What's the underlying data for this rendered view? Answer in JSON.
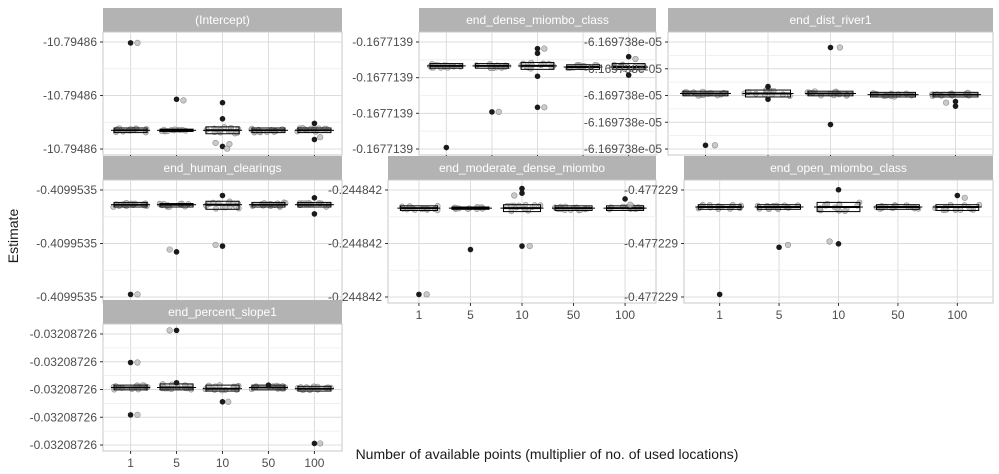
{
  "chart_data": {
    "type": "scatter",
    "subtype": "faceted-boxplot-with-jitter",
    "xlabel": "Number of available points (multiplier of no. of used locations)",
    "ylabel": "Estimate",
    "categories": [
      "1",
      "5",
      "10",
      "50",
      "100"
    ],
    "grid": true,
    "colors": {
      "strip": "#b3b3b3",
      "strip_text": "#ffffff",
      "grid": "#dcdcdc",
      "point_dark": "#1a1a1a",
      "point_light": "#bdbdbd",
      "box": "#000000",
      "text": "#4d4d4d"
    },
    "panels": [
      {
        "title": "(Intercept)",
        "yticks": [
          "-10.79486",
          "-10.79486",
          "-10.79486"
        ],
        "box": [
          {
            "cat": "1",
            "q1": 0.8,
            "med": 0.82,
            "q3": 0.84
          },
          {
            "cat": "5",
            "q1": 0.81,
            "med": 0.82,
            "q3": 0.83
          },
          {
            "cat": "10",
            "q1": 0.79,
            "med": 0.82,
            "q3": 0.85
          },
          {
            "cat": "50",
            "q1": 0.8,
            "med": 0.82,
            "q3": 0.84
          },
          {
            "cat": "100",
            "q1": 0.8,
            "med": 0.82,
            "q3": 0.84
          }
        ],
        "outliers": [
          {
            "cat": "1",
            "y": 0.06,
            "dark": true
          },
          {
            "cat": "1",
            "y": 0.06,
            "dark": false,
            "dx": 0.3
          },
          {
            "cat": "5",
            "y": 0.55,
            "dark": true
          },
          {
            "cat": "5",
            "y": 0.56,
            "dark": false,
            "dx": 0.3
          },
          {
            "cat": "10",
            "y": 0.58,
            "dark": true
          },
          {
            "cat": "10",
            "y": 0.72,
            "dark": true
          },
          {
            "cat": "10",
            "y": 0.96,
            "dark": true
          },
          {
            "cat": "10",
            "y": 0.94,
            "dark": false,
            "dx": 0.3
          },
          {
            "cat": "10",
            "y": 0.98,
            "dark": false,
            "dx": 0.2
          },
          {
            "cat": "10",
            "y": 0.93,
            "dark": false,
            "dx": -0.3
          },
          {
            "cat": "100",
            "y": 0.76,
            "dark": true
          },
          {
            "cat": "100",
            "y": 0.9,
            "dark": true
          },
          {
            "cat": "100",
            "y": 0.88,
            "dark": false,
            "dx": 0.25
          }
        ]
      },
      {
        "title": "end_dense_miombo_class",
        "yticks": [
          "-0.1677139",
          "-0.1677139",
          "-0.1677139",
          "-0.1677139"
        ],
        "box": [
          {
            "cat": "1",
            "q1": 0.24,
            "med": 0.26,
            "q3": 0.28
          },
          {
            "cat": "5",
            "q1": 0.24,
            "med": 0.26,
            "q3": 0.28
          },
          {
            "cat": "10",
            "q1": 0.23,
            "med": 0.26,
            "q3": 0.29
          },
          {
            "cat": "50",
            "q1": 0.25,
            "med": 0.27,
            "q3": 0.29
          },
          {
            "cat": "100",
            "q1": 0.24,
            "med": 0.27,
            "q3": 0.29
          }
        ],
        "outliers": [
          {
            "cat": "1",
            "y": 0.97,
            "dark": true
          },
          {
            "cat": "5",
            "y": 0.66,
            "dark": true
          },
          {
            "cat": "5",
            "y": 0.66,
            "dark": false,
            "dx": 0.3
          },
          {
            "cat": "10",
            "y": 0.11,
            "dark": true
          },
          {
            "cat": "10",
            "y": 0.15,
            "dark": true
          },
          {
            "cat": "10",
            "y": 0.35,
            "dark": true
          },
          {
            "cat": "10",
            "y": 0.62,
            "dark": true
          },
          {
            "cat": "10",
            "y": 0.11,
            "dark": false,
            "dx": 0.3
          },
          {
            "cat": "10",
            "y": 0.62,
            "dark": false,
            "dx": 0.3
          },
          {
            "cat": "100",
            "y": 0.18,
            "dark": true
          },
          {
            "cat": "100",
            "y": 0.2,
            "dark": false,
            "dx": 0.3
          },
          {
            "cat": "100",
            "y": 0.34,
            "dark": true
          }
        ]
      },
      {
        "title": "end_dist_river1",
        "yticks": [
          "-6.169738e-05",
          "-6.169738e-05",
          "-6.169738e-05",
          "-6.169738e-05",
          "-6.169738e-05"
        ],
        "box": [
          {
            "cat": "1",
            "q1": 0.48,
            "med": 0.5,
            "q3": 0.52
          },
          {
            "cat": "5",
            "q1": 0.47,
            "med": 0.5,
            "q3": 0.53
          },
          {
            "cat": "10",
            "q1": 0.48,
            "med": 0.5,
            "q3": 0.52
          },
          {
            "cat": "50",
            "q1": 0.49,
            "med": 0.51,
            "q3": 0.53
          },
          {
            "cat": "100",
            "q1": 0.49,
            "med": 0.51,
            "q3": 0.53
          }
        ],
        "outliers": [
          {
            "cat": "1",
            "y": 0.95,
            "dark": true
          },
          {
            "cat": "1",
            "y": 0.95,
            "dark": false,
            "dx": 0.3
          },
          {
            "cat": "5",
            "y": 0.44,
            "dark": true
          },
          {
            "cat": "5",
            "y": 0.55,
            "dark": true
          },
          {
            "cat": "10",
            "y": 0.1,
            "dark": true
          },
          {
            "cat": "10",
            "y": 0.1,
            "dark": false,
            "dx": 0.3
          },
          {
            "cat": "10",
            "y": 0.77,
            "dark": true
          },
          {
            "cat": "100",
            "y": 0.57,
            "dark": true
          },
          {
            "cat": "100",
            "y": 0.61,
            "dark": true
          },
          {
            "cat": "100",
            "y": 0.58,
            "dark": false,
            "dx": -0.3
          }
        ]
      },
      {
        "title": "end_human_clearings",
        "yticks": [
          "-0.4099535",
          "-0.4099535",
          "-0.4099535"
        ],
        "box": [
          {
            "cat": "1",
            "q1": 0.16,
            "med": 0.18,
            "q3": 0.2
          },
          {
            "cat": "5",
            "q1": 0.17,
            "med": 0.18,
            "q3": 0.2
          },
          {
            "cat": "10",
            "q1": 0.15,
            "med": 0.18,
            "q3": 0.22
          },
          {
            "cat": "50",
            "q1": 0.16,
            "med": 0.18,
            "q3": 0.2
          },
          {
            "cat": "100",
            "q1": 0.16,
            "med": 0.18,
            "q3": 0.2
          }
        ],
        "outliers": [
          {
            "cat": "1",
            "y": 0.96,
            "dark": true
          },
          {
            "cat": "1",
            "y": 0.96,
            "dark": false,
            "dx": 0.3
          },
          {
            "cat": "5",
            "y": 0.59,
            "dark": true
          },
          {
            "cat": "5",
            "y": 0.57,
            "dark": false,
            "dx": -0.3
          },
          {
            "cat": "10",
            "y": 0.54,
            "dark": true
          },
          {
            "cat": "10",
            "y": 0.53,
            "dark": false,
            "dx": -0.3
          },
          {
            "cat": "10",
            "y": 0.1,
            "dark": true
          },
          {
            "cat": "100",
            "y": 0.12,
            "dark": true
          },
          {
            "cat": "100",
            "y": 0.26,
            "dark": true
          }
        ]
      },
      {
        "title": "end_moderate_dense_miombo",
        "yticks": [
          "-0.244842",
          "-0.244842",
          "-0.244842"
        ],
        "box": [
          {
            "cat": "1",
            "q1": 0.19,
            "med": 0.21,
            "q3": 0.23
          },
          {
            "cat": "5",
            "q1": 0.2,
            "med": 0.21,
            "q3": 0.22
          },
          {
            "cat": "10",
            "q1": 0.18,
            "med": 0.21,
            "q3": 0.24
          },
          {
            "cat": "50",
            "q1": 0.19,
            "med": 0.21,
            "q3": 0.23
          },
          {
            "cat": "100",
            "q1": 0.19,
            "med": 0.21,
            "q3": 0.23
          }
        ],
        "outliers": [
          {
            "cat": "1",
            "y": 0.96,
            "dark": true
          },
          {
            "cat": "1",
            "y": 0.96,
            "dark": false,
            "dx": 0.3
          },
          {
            "cat": "5",
            "y": 0.57,
            "dark": true
          },
          {
            "cat": "10",
            "y": 0.04,
            "dark": true
          },
          {
            "cat": "10",
            "y": 0.08,
            "dark": true
          },
          {
            "cat": "10",
            "y": 0.1,
            "dark": false,
            "dx": -0.3
          },
          {
            "cat": "10",
            "y": 0.54,
            "dark": true
          },
          {
            "cat": "10",
            "y": 0.54,
            "dark": false,
            "dx": 0.3
          },
          {
            "cat": "100",
            "y": 0.13,
            "dark": true
          },
          {
            "cat": "100",
            "y": 0.18,
            "dark": false,
            "dx": 0.2
          }
        ]
      },
      {
        "title": "end_open_miombo_class",
        "yticks": [
          "-0.477229",
          "-0.477229",
          "-0.477229"
        ],
        "box": [
          {
            "cat": "1",
            "q1": 0.18,
            "med": 0.2,
            "q3": 0.22
          },
          {
            "cat": "5",
            "q1": 0.18,
            "med": 0.2,
            "q3": 0.22
          },
          {
            "cat": "10",
            "q1": 0.16,
            "med": 0.2,
            "q3": 0.24
          },
          {
            "cat": "50",
            "q1": 0.18,
            "med": 0.2,
            "q3": 0.22
          },
          {
            "cat": "100",
            "q1": 0.18,
            "med": 0.2,
            "q3": 0.23
          }
        ],
        "outliers": [
          {
            "cat": "1",
            "y": 0.96,
            "dark": true
          },
          {
            "cat": "5",
            "y": 0.55,
            "dark": true
          },
          {
            "cat": "5",
            "y": 0.53,
            "dark": false,
            "dx": 0.3
          },
          {
            "cat": "10",
            "y": 0.05,
            "dark": true
          },
          {
            "cat": "10",
            "y": 0.52,
            "dark": true
          },
          {
            "cat": "10",
            "y": 0.5,
            "dark": false,
            "dx": -0.3
          },
          {
            "cat": "100",
            "y": 0.1,
            "dark": true
          },
          {
            "cat": "100",
            "y": 0.12,
            "dark": false,
            "dx": 0.25
          }
        ]
      },
      {
        "title": "end_percent_slope1",
        "yticks": [
          "-0.03208726",
          "-0.03208726",
          "-0.03208726",
          "-0.03208726",
          "-0.03208726"
        ],
        "box": [
          {
            "cat": "1",
            "q1": 0.48,
            "med": 0.5,
            "q3": 0.52
          },
          {
            "cat": "5",
            "q1": 0.47,
            "med": 0.5,
            "q3": 0.52
          },
          {
            "cat": "10",
            "q1": 0.48,
            "med": 0.51,
            "q3": 0.53
          },
          {
            "cat": "50",
            "q1": 0.48,
            "med": 0.5,
            "q3": 0.52
          },
          {
            "cat": "100",
            "q1": 0.49,
            "med": 0.51,
            "q3": 0.53
          }
        ],
        "outliers": [
          {
            "cat": "1",
            "y": 0.29,
            "dark": true
          },
          {
            "cat": "1",
            "y": 0.29,
            "dark": false,
            "dx": 0.3
          },
          {
            "cat": "1",
            "y": 0.73,
            "dark": true
          },
          {
            "cat": "1",
            "y": 0.73,
            "dark": false,
            "dx": 0.3
          },
          {
            "cat": "5",
            "y": 0.02,
            "dark": true
          },
          {
            "cat": "5",
            "y": 0.02,
            "dark": false,
            "dx": -0.3
          },
          {
            "cat": "5",
            "y": 0.46,
            "dark": true
          },
          {
            "cat": "10",
            "y": 0.62,
            "dark": true
          },
          {
            "cat": "10",
            "y": 0.62,
            "dark": false,
            "dx": 0.25
          },
          {
            "cat": "50",
            "y": 0.48,
            "dark": true
          },
          {
            "cat": "100",
            "y": 0.97,
            "dark": true
          },
          {
            "cat": "100",
            "y": 0.97,
            "dark": false,
            "dx": 0.25
          }
        ]
      }
    ]
  }
}
